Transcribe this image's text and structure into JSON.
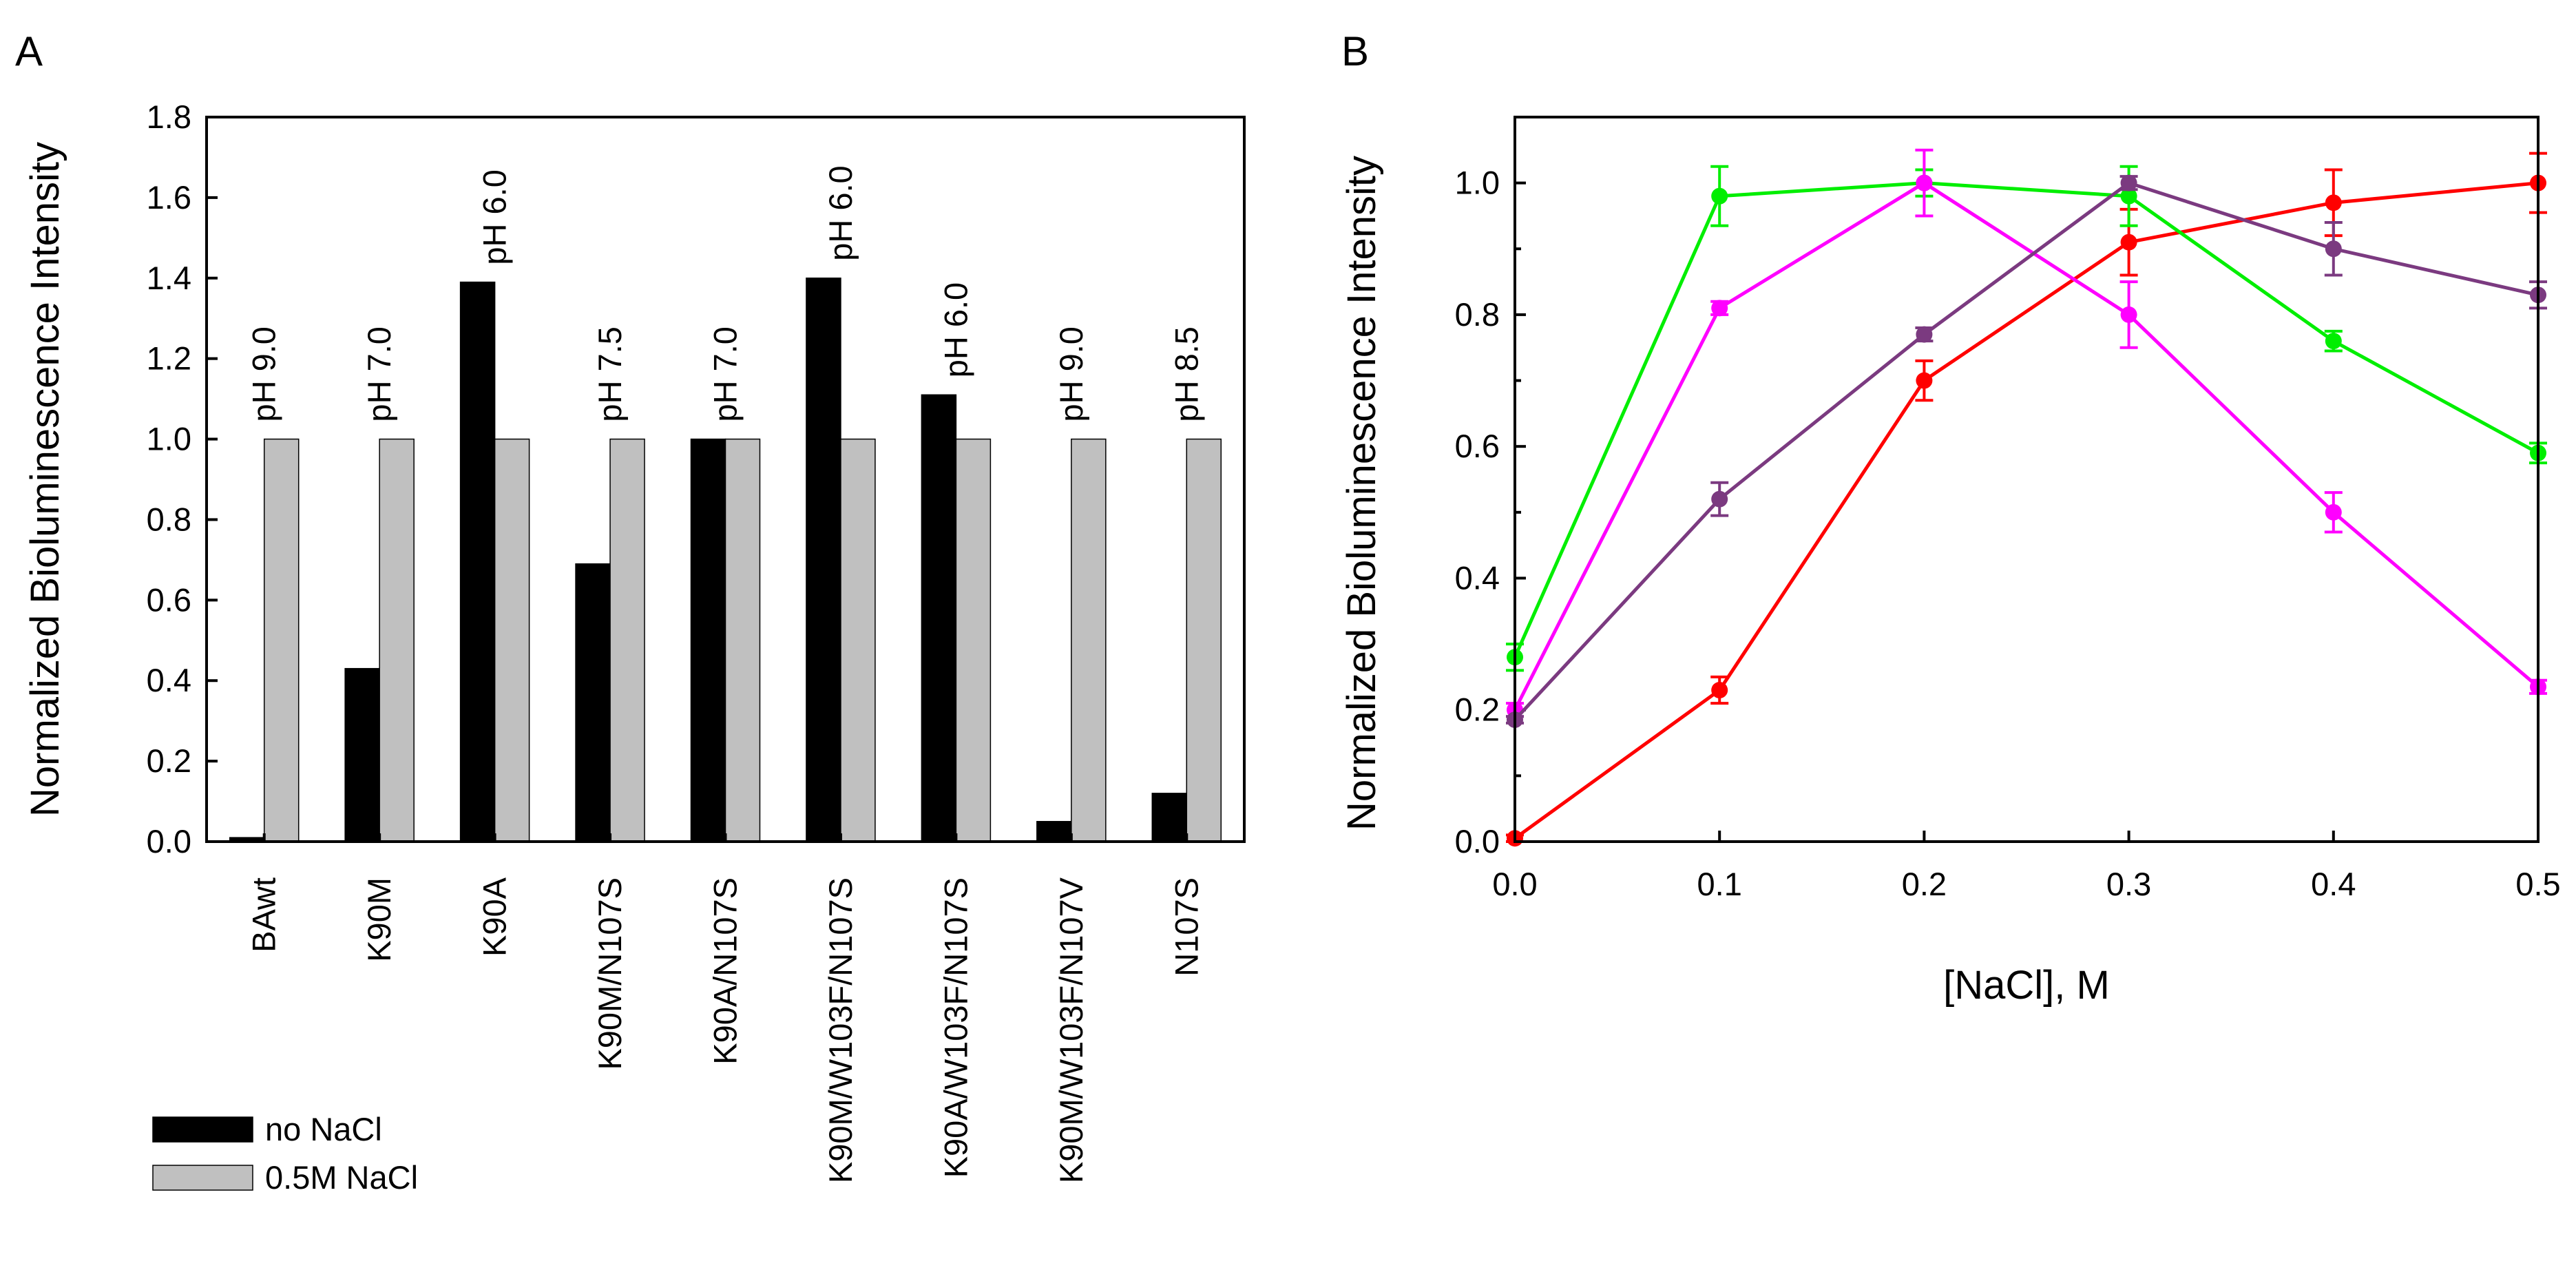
{
  "chart_data": [
    {
      "panel": "A",
      "type": "bar",
      "ylabel": "Normalized Bioluminescence Intensity",
      "xlabel": "",
      "ylim": [
        0,
        1.8
      ],
      "yticks": [
        "0.0",
        "0.2",
        "0.4",
        "0.6",
        "0.8",
        "1.0",
        "1.2",
        "1.4",
        "1.6",
        "1.8"
      ],
      "categories": [
        "BAwt",
        "K90M",
        "K90A",
        "K90M/N107S",
        "K90A/N107S",
        "K90M/W103F/N107S",
        "K90A/W103F/N107S",
        "K90M/W103F/N107V",
        "N107S"
      ],
      "annotations": [
        "pH 9.0",
        "pH 7.0",
        "pH 6.0",
        "pH 7.5",
        "pH 7.0",
        "pH 6.0",
        "pH 6.0",
        "pH 9.0",
        "pH 8.5"
      ],
      "series": [
        {
          "name": "no NaCl",
          "color": "#000000",
          "values": [
            0.01,
            0.43,
            1.39,
            0.69,
            1.0,
            1.4,
            1.11,
            0.05,
            0.12
          ]
        },
        {
          "name": "0.5M NaCl",
          "color": "#c0c0c0",
          "values": [
            1.0,
            1.0,
            1.0,
            1.0,
            1.0,
            1.0,
            1.0,
            1.0,
            1.0
          ]
        }
      ],
      "legend": "bottom-left"
    },
    {
      "panel": "B",
      "type": "line",
      "xlabel": "[NaCl], M",
      "ylabel": "Normalized Bioluminescence Intensity",
      "xlim": [
        0,
        0.5
      ],
      "ylim": [
        0,
        1.1
      ],
      "xticks": [
        "0.0",
        "0.1",
        "0.2",
        "0.3",
        "0.4",
        "0.5"
      ],
      "yticks": [
        "0.0",
        "0.2",
        "0.4",
        "0.6",
        "0.8",
        "1.0"
      ],
      "x": [
        0.0,
        0.1,
        0.2,
        0.3,
        0.4,
        0.5
      ],
      "series": [
        {
          "color": "#ff0000",
          "values": [
            0.005,
            0.23,
            0.7,
            0.91,
            0.97,
            1.0
          ],
          "errors": [
            0.005,
            0.02,
            0.03,
            0.05,
            0.05,
            0.045
          ]
        },
        {
          "color": "#00ee00",
          "values": [
            0.28,
            0.98,
            1.0,
            0.98,
            0.76,
            0.59
          ],
          "errors": [
            0.02,
            0.045,
            0.02,
            0.045,
            0.015,
            0.015
          ]
        },
        {
          "color": "#ff00ff",
          "values": [
            0.2,
            0.81,
            1.0,
            0.8,
            0.5,
            0.235
          ],
          "errors": [
            0.01,
            0.01,
            0.05,
            0.05,
            0.03,
            0.01
          ]
        },
        {
          "color": "#7b3a80",
          "values": [
            0.185,
            0.52,
            0.77,
            1.0,
            0.9,
            0.83
          ],
          "errors": [
            0.005,
            0.025,
            0.01,
            0.01,
            0.04,
            0.02
          ]
        }
      ]
    }
  ]
}
